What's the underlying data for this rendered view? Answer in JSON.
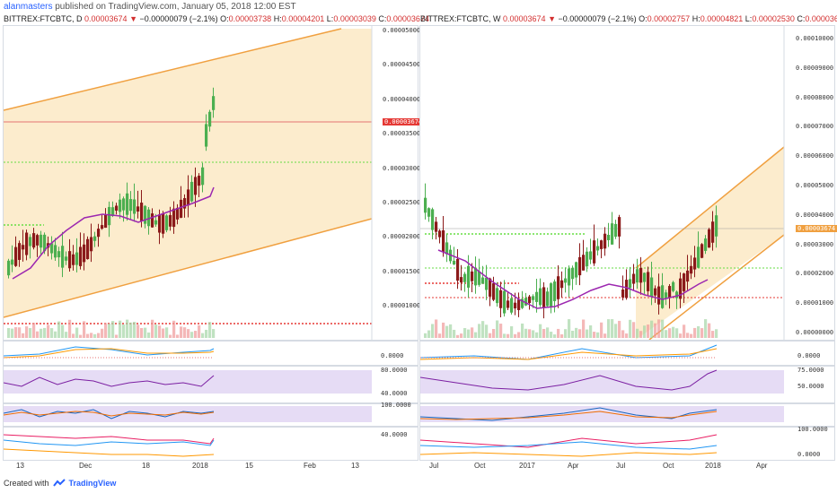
{
  "header": {
    "author": "alanmasters",
    "published_text": "published on TradingView.com, January 05, 2018 12:00 EST"
  },
  "left_chart": {
    "symbol_line": {
      "symbol": "BITTREX:FTCBTC, D",
      "last": "0.00003674",
      "change": "−0.00000079 (−2.1%)",
      "open_label": "O:",
      "open": "0.00003738",
      "high_label": "H:",
      "high": "0.00004201",
      "low_label": "L:",
      "low": "0.00003039",
      "close_label": "C:",
      "close": "0.00003674"
    },
    "price_ticks": [
      "0.00005000",
      "0.00004500",
      "0.00004000",
      "0.00003500",
      "0.00003000",
      "0.00002500",
      "0.00002000",
      "0.00001500",
      "0.00001000"
    ],
    "current_price": "0.00003674",
    "macd_tick": "0.0000",
    "rsi_ticks": [
      "80.0000",
      "40.0000"
    ],
    "stoch_ticks": [
      "100.0000"
    ],
    "dmi_ticks": [
      "40.0000"
    ],
    "x_ticks": [
      "13",
      "Dec",
      "18",
      "2018",
      "15",
      "Feb",
      "13"
    ]
  },
  "right_chart": {
    "symbol_line": {
      "symbol": "BITTREX:FTCBTC, W",
      "last": "0.00003674",
      "change": "−0.00000079 (−2.1%)",
      "open_label": "O:",
      "open": "0.00002757",
      "high_label": "H:",
      "high": "0.00004821",
      "low_label": "L:",
      "low": "0.00002530",
      "close_label": "C:",
      "close": "0.00003674"
    },
    "price_ticks": [
      "0.00010000",
      "0.00009000",
      "0.00008000",
      "0.00007000",
      "0.00006000",
      "0.00005000",
      "0.00004000",
      "0.00003000",
      "0.00002000",
      "0.00001000",
      "0.00000000"
    ],
    "current_price": "0.00003674",
    "macd_tick": "0.0000",
    "rsi_ticks": [
      "75.0000",
      "50.0000"
    ],
    "stoch_ticks": [],
    "dmi_ticks": [
      "100.0000",
      "0.0000"
    ],
    "x_ticks": [
      "Jul",
      "Oct",
      "2017",
      "Apr",
      "Jul",
      "Oct",
      "2018",
      "Apr"
    ]
  },
  "footer": {
    "created_with": "Created with",
    "brand": "TradingView"
  },
  "colors": {
    "up_candle": "#4caf50",
    "down_candle": "#8b1a1a",
    "channel_fill": "#fbe9c4",
    "channel_line": "#f0a040",
    "ma_line": "#9c27b0",
    "support_green": "#66dd44",
    "resistance_red": "#e53935",
    "rsi_band": "#e6dcf5"
  }
}
